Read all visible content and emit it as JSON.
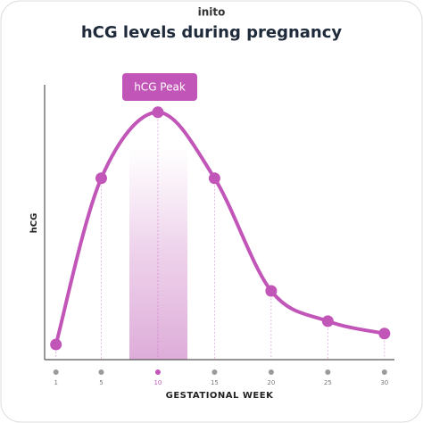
{
  "brand": "inito",
  "chart_data": {
    "type": "line",
    "title": "hCG levels during pregnancy",
    "x_label": "GESTATIONAL WEEK",
    "y_label": "hCG",
    "annotation": "hCG Peak",
    "x": [
      1,
      5,
      10,
      15,
      20,
      25,
      30
    ],
    "values": [
      5.5,
      66,
      90,
      66,
      25,
      14,
      9.5
    ],
    "color": "#c155b8",
    "xlim": [
      0,
      31
    ],
    "xticks": [
      1,
      5,
      10,
      15,
      20,
      25,
      30
    ],
    "ylim": [
      0,
      100
    ],
    "highlight_x": 10
  }
}
